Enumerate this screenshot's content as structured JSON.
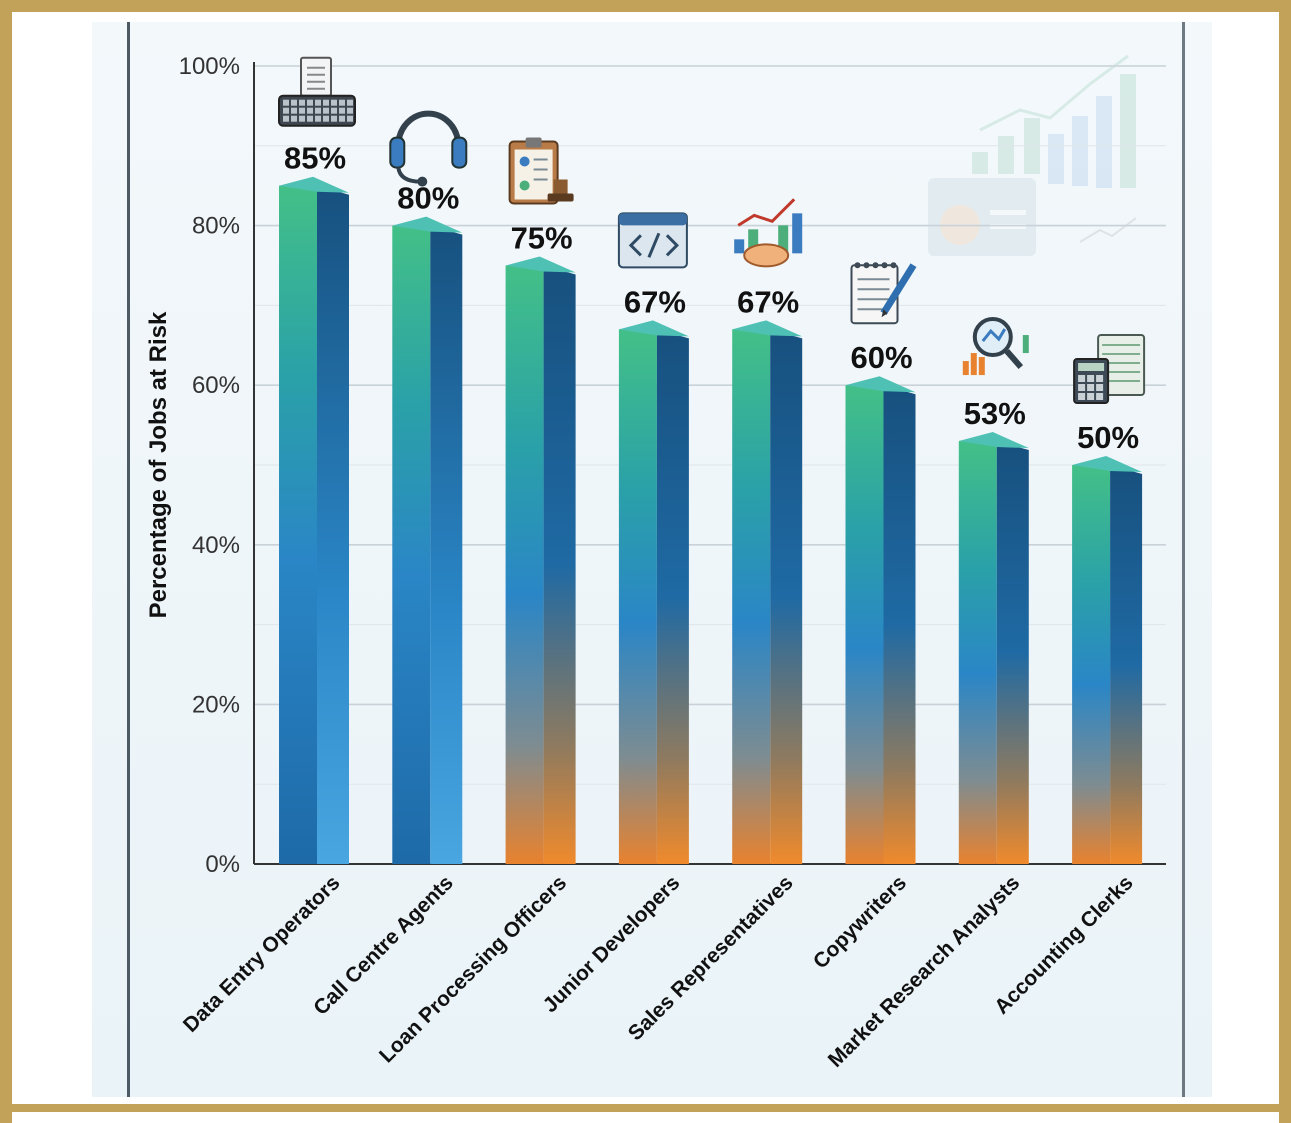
{
  "chart_data": {
    "type": "bar",
    "title": "",
    "xlabel": "",
    "ylabel": "Percentage of Jobs at Risk",
    "ylim": [
      0,
      100
    ],
    "yticks": [
      "0%",
      "20%",
      "40%",
      "60%",
      "80%",
      "100%"
    ],
    "grid": true,
    "categories": [
      "Data Entry Operators",
      "Call Centre Agents",
      "Loan Processing Officers",
      "Junior Developers",
      "Sales Representatives",
      "Copywriters",
      "Market Research Analysts",
      "Accounting Clerks"
    ],
    "values": [
      85,
      80,
      75,
      67,
      67,
      60,
      53,
      50
    ],
    "data_labels": [
      "85%",
      "80%",
      "75%",
      "67%",
      "67%",
      "60%",
      "53%",
      "50%"
    ],
    "icons": [
      "keyboard-document-icon",
      "headset-icon",
      "clipboard-stamp-icon",
      "code-window-icon",
      "handshake-growth-icon",
      "notepad-pen-icon",
      "magnifier-chart-icon",
      "calculator-spreadsheet-icon"
    ]
  },
  "colors": {
    "frame": "#c2a158",
    "bar_top": "#3fbf86",
    "bar_mid": "#2f82c4",
    "bar_base": "#e8822e",
    "bar_side": "#17507e"
  }
}
